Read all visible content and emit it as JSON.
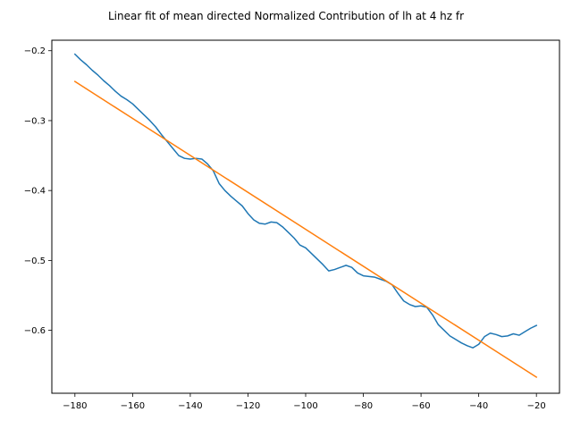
{
  "chart_data": {
    "type": "line",
    "title": "Linear fit of mean directed Normalized Contribution of lh at 4 hz fr",
    "xlabel": "",
    "ylabel": "",
    "xlim": [
      -188,
      -12
    ],
    "ylim": [
      -0.69,
      -0.185
    ],
    "xticks": [
      -180,
      -160,
      -140,
      -120,
      -100,
      -80,
      -60,
      -40,
      -20
    ],
    "yticks": [
      -0.2,
      -0.3,
      -0.4,
      -0.5,
      -0.6
    ],
    "grid": false,
    "series": [
      {
        "color": "#1f77b4",
        "x": [
          -180,
          -178,
          -176,
          -174,
          -172,
          -170,
          -168,
          -166,
          -164,
          -162,
          -160,
          -158,
          -156,
          -154,
          -152,
          -150,
          -148,
          -146,
          -144,
          -142,
          -140,
          -138,
          -136,
          -134,
          -132,
          -130,
          -128,
          -126,
          -124,
          -122,
          -120,
          -118,
          -116,
          -114,
          -112,
          -110,
          -108,
          -106,
          -104,
          -102,
          -100,
          -98,
          -96,
          -94,
          -92,
          -90,
          -88,
          -86,
          -84,
          -82,
          -80,
          -78,
          -76,
          -74,
          -72,
          -70,
          -68,
          -66,
          -64,
          -62,
          -60,
          -58,
          -56,
          -54,
          -52,
          -50,
          -48,
          -46,
          -44,
          -42,
          -40,
          -38,
          -36,
          -34,
          -32,
          -30,
          -28,
          -26,
          -24,
          -22,
          -20
        ],
        "values": [
          -0.205,
          -0.213,
          -0.22,
          -0.228,
          -0.235,
          -0.243,
          -0.25,
          -0.258,
          -0.265,
          -0.27,
          -0.276,
          -0.284,
          -0.292,
          -0.3,
          -0.309,
          -0.32,
          -0.33,
          -0.34,
          -0.35,
          -0.354,
          -0.355,
          -0.354,
          -0.355,
          -0.362,
          -0.372,
          -0.39,
          -0.4,
          -0.408,
          -0.415,
          -0.422,
          -0.433,
          -0.442,
          -0.447,
          -0.448,
          -0.445,
          -0.446,
          -0.452,
          -0.46,
          -0.468,
          -0.478,
          -0.482,
          -0.49,
          -0.498,
          -0.506,
          -0.515,
          -0.513,
          -0.51,
          -0.507,
          -0.51,
          -0.518,
          -0.522,
          -0.523,
          -0.524,
          -0.527,
          -0.53,
          -0.535,
          -0.547,
          -0.558,
          -0.563,
          -0.566,
          -0.565,
          -0.567,
          -0.578,
          -0.592,
          -0.6,
          -0.608,
          -0.613,
          -0.618,
          -0.622,
          -0.625,
          -0.62,
          -0.609,
          -0.604,
          -0.606,
          -0.609,
          -0.608,
          -0.605,
          -0.607,
          -0.602,
          -0.597,
          -0.593
        ]
      },
      {
        "color": "#ff7f0e",
        "x": [
          -180,
          -20
        ],
        "values": [
          -0.244,
          -0.667
        ]
      }
    ]
  }
}
